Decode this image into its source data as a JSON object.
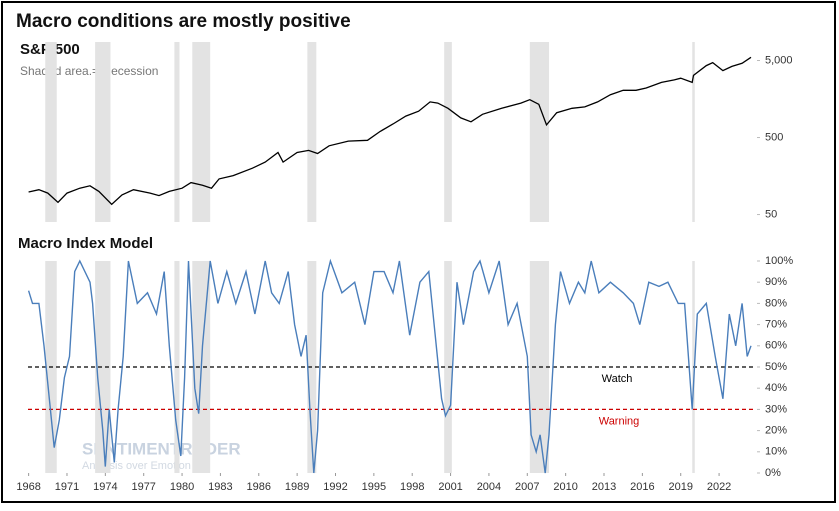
{
  "chart_data": [
    {
      "type": "line",
      "title": "Macro conditions are mostly positive",
      "subtitle": "S&P 500",
      "note": "Shaded area.= Recession",
      "log_scale": true,
      "color": "#000000",
      "ylim": [
        40,
        8700
      ],
      "xlim": [
        1966.7,
        2025.2
      ],
      "yticks": [
        50,
        500,
        {
          "value": 5000,
          "label": "5,000"
        }
      ],
      "recessions": [
        [
          1969.3,
          1970.2
        ],
        [
          1973.2,
          1974.4
        ],
        [
          1979.4,
          1979.8
        ],
        [
          1980.8,
          1982.2
        ],
        [
          1989.8,
          1990.5
        ],
        [
          2000.5,
          2001.1
        ],
        [
          2007.2,
          2008.7
        ],
        [
          2019.9,
          2020.1
        ]
      ],
      "x": [
        1968.0,
        1968.8,
        1969.5,
        1970.3,
        1971.0,
        1972.0,
        1972.8,
        1973.5,
        1974.5,
        1975.3,
        1976.2,
        1977.5,
        1978.2,
        1979.0,
        1980.0,
        1980.7,
        1981.6,
        1982.3,
        1982.9,
        1984.0,
        1985.5,
        1986.5,
        1987.5,
        1987.9,
        1989.0,
        1989.9,
        1990.6,
        1991.5,
        1993.0,
        1994.5,
        1995.5,
        1996.5,
        1997.5,
        1998.5,
        1999.4,
        2000.0,
        2000.8,
        2001.8,
        2002.6,
        2003.5,
        2005.0,
        2006.5,
        2007.2,
        2007.9,
        2008.5,
        2009.3,
        2010.5,
        2011.5,
        2012.5,
        2013.5,
        2014.5,
        2015.5,
        2016.3,
        2017.5,
        2018.5,
        2019.0,
        2019.9,
        2020.0,
        2021.0,
        2021.5,
        2022.3,
        2023.0,
        2023.8,
        2024.5
      ],
      "values": [
        98,
        105,
        95,
        72,
        95,
        110,
        118,
        100,
        68,
        90,
        105,
        95,
        88,
        100,
        110,
        130,
        120,
        110,
        145,
        160,
        200,
        240,
        320,
        240,
        320,
        340,
        310,
        390,
        450,
        460,
        600,
        750,
        950,
        1100,
        1450,
        1400,
        1200,
        900,
        800,
        1000,
        1200,
        1400,
        1550,
        1350,
        730,
        1050,
        1200,
        1250,
        1450,
        1800,
        2050,
        2050,
        2200,
        2600,
        2800,
        2950,
        2600,
        3200,
        4300,
        4700,
        3700,
        4200,
        4600,
        5500
      ]
    },
    {
      "type": "line",
      "title": "Macro Index Model",
      "color": "#4a7ebb",
      "ylim": [
        0,
        100
      ],
      "xlim": [
        1966.7,
        2025.2
      ],
      "watermark": "SENTIMENTRADER",
      "watermark_sub": "Analysis over Emotion",
      "yticks": [
        {
          "value": 0,
          "label": "0%"
        },
        {
          "value": 10,
          "label": "10%"
        },
        {
          "value": 20,
          "label": "20%"
        },
        {
          "value": 30,
          "label": "30%"
        },
        {
          "value": 40,
          "label": "40%"
        },
        {
          "value": 50,
          "label": "50%"
        },
        {
          "value": 60,
          "label": "60%"
        },
        {
          "value": 70,
          "label": "70%"
        },
        {
          "value": 80,
          "label": "80%"
        },
        {
          "value": 90,
          "label": "90%"
        },
        {
          "value": 100,
          "label": "100%"
        }
      ],
      "xticks": [
        1968,
        1971,
        1974,
        1977,
        1980,
        1983,
        1986,
        1989,
        1992,
        1995,
        1998,
        2001,
        2004,
        2007,
        2010,
        2013,
        2016,
        2019,
        2022
      ],
      "thresholds": [
        {
          "label": "Watch",
          "value": 50,
          "color": "#000000"
        },
        {
          "label": "Warning",
          "value": 30,
          "color": "#cc0000"
        }
      ],
      "x": [
        1968.0,
        1968.3,
        1968.8,
        1969.2,
        1969.7,
        1970.0,
        1970.4,
        1970.8,
        1971.2,
        1971.6,
        1972.0,
        1972.8,
        1973.0,
        1973.4,
        1973.8,
        1974.0,
        1974.3,
        1974.7,
        1975.0,
        1975.4,
        1975.8,
        1976.5,
        1977.3,
        1978.0,
        1978.6,
        1979.0,
        1979.5,
        1979.9,
        1980.2,
        1980.5,
        1981.0,
        1981.3,
        1981.6,
        1982.2,
        1982.8,
        1983.5,
        1984.2,
        1985.0,
        1985.7,
        1986.5,
        1987.0,
        1987.6,
        1988.3,
        1988.8,
        1989.3,
        1989.7,
        1990.0,
        1990.3,
        1990.6,
        1991.0,
        1991.6,
        1992.5,
        1993.5,
        1994.3,
        1995.0,
        1995.8,
        1996.5,
        1997.0,
        1997.8,
        1998.6,
        1999.3,
        1999.8,
        2000.3,
        2000.6,
        2001.0,
        2001.5,
        2002.0,
        2002.8,
        2003.3,
        2004.0,
        2004.8,
        2005.5,
        2006.2,
        2007.0,
        2007.3,
        2007.7,
        2008.0,
        2008.4,
        2008.7,
        2009.2,
        2009.6,
        2010.3,
        2011.0,
        2011.5,
        2012.0,
        2012.6,
        2013.5,
        2014.5,
        2015.3,
        2015.8,
        2016.5,
        2017.3,
        2018.0,
        2018.8,
        2019.3,
        2019.9,
        2020.3,
        2021.0,
        2021.7,
        2022.3,
        2022.8,
        2023.3,
        2023.8,
        2024.2,
        2024.5
      ],
      "values": [
        86,
        80,
        80,
        60,
        30,
        12,
        25,
        45,
        55,
        95,
        100,
        90,
        80,
        45,
        20,
        3,
        30,
        5,
        30,
        55,
        100,
        80,
        85,
        75,
        95,
        60,
        25,
        8,
        45,
        100,
        40,
        28,
        60,
        100,
        80,
        95,
        80,
        95,
        75,
        100,
        85,
        80,
        95,
        70,
        55,
        65,
        30,
        0,
        20,
        85,
        100,
        85,
        90,
        70,
        95,
        95,
        85,
        100,
        65,
        90,
        95,
        65,
        35,
        27,
        32,
        90,
        70,
        95,
        100,
        85,
        100,
        70,
        80,
        55,
        18,
        10,
        18,
        0,
        18,
        70,
        95,
        80,
        90,
        85,
        100,
        85,
        90,
        85,
        80,
        70,
        90,
        88,
        90,
        80,
        80,
        30,
        75,
        80,
        55,
        35,
        75,
        60,
        80,
        55,
        60
      ]
    }
  ]
}
